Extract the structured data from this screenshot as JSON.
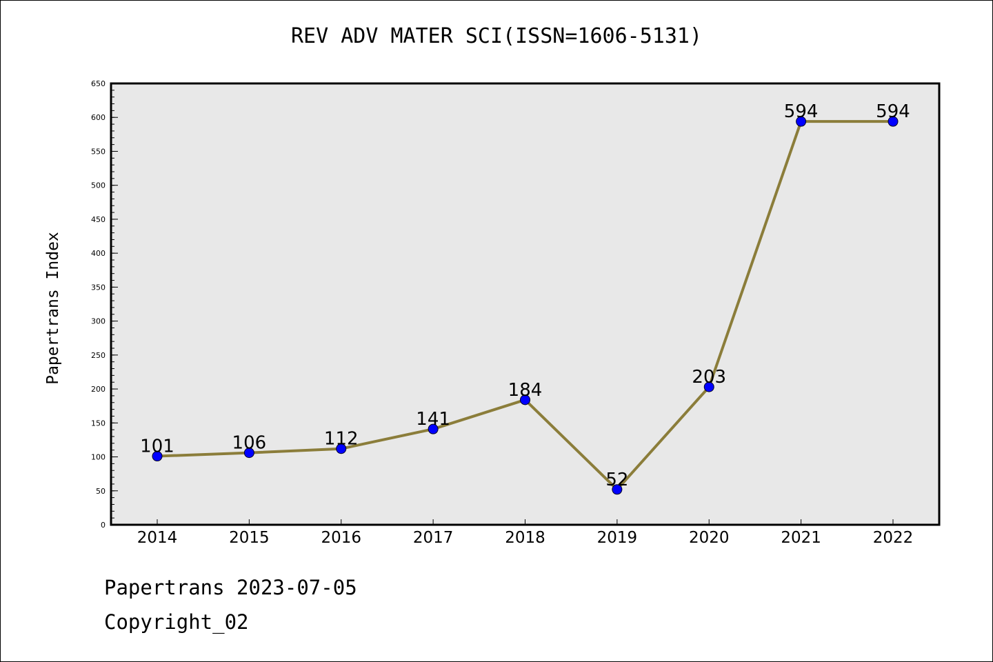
{
  "chart_data": {
    "type": "line",
    "title": "REV ADV MATER SCI(ISSN=1606-5131)",
    "xlabel": "",
    "ylabel": "Papertrans Index",
    "x": [
      "2014",
      "2015",
      "2016",
      "2017",
      "2018",
      "2019",
      "2020",
      "2021",
      "2022"
    ],
    "series": [
      {
        "values": [
          101,
          106,
          112,
          141,
          184,
          52,
          203,
          594,
          594
        ]
      }
    ],
    "data_labels": [
      "101",
      "106",
      "112",
      "141",
      "184",
      "52",
      "203",
      "594",
      "594"
    ],
    "ylim": [
      0,
      650
    ],
    "yticks": [
      0,
      50,
      100,
      150,
      200,
      250,
      300,
      350,
      400,
      450,
      500,
      550,
      600,
      650
    ],
    "grid": false,
    "legend": "none",
    "colors": {
      "line": "#8B7D3A",
      "marker": "#0000FF",
      "plot_background": "#E8E8E8"
    }
  },
  "footer": {
    "date_line": "Papertrans 2023-07-05",
    "copyright": "Copyright_02"
  }
}
